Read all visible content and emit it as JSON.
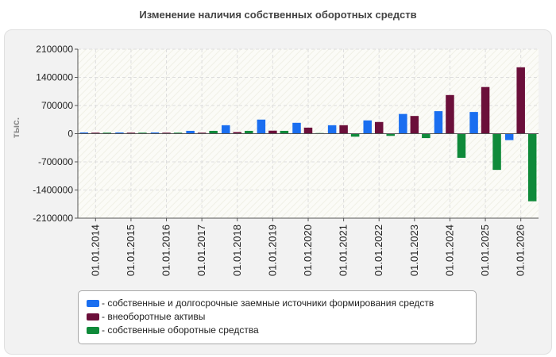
{
  "chart_data": {
    "type": "bar",
    "title": "Изменение наличия собственных оборотных средств",
    "xlabel": "",
    "ylabel": "тыс.",
    "ylim": [
      -2100000,
      2100000
    ],
    "yticks": [
      2100000,
      1400000,
      700000,
      0,
      -700000,
      -1400000,
      -2100000
    ],
    "yticklabels": [
      "2100000",
      "1400000",
      "700000",
      "0",
      "-700000",
      "-1400000",
      "-2100000"
    ],
    "grid": true,
    "legend_position": "bottom",
    "categories": [
      "01.01.2014",
      "01.01.2015",
      "01.01.2016",
      "01.01.2017",
      "01.01.2018",
      "01.01.2019",
      "01.01.2020",
      "01.01.2021",
      "01.01.2022",
      "01.01.2023",
      "01.01.2024",
      "01.01.2025",
      "01.01.2026"
    ],
    "series": [
      {
        "name": "- собственные и долгосрочные заемные источники формирования средств",
        "color": "#1a6ef0",
        "values": [
          30000,
          30000,
          30000,
          70000,
          210000,
          350000,
          270000,
          210000,
          330000,
          490000,
          560000,
          540000,
          -160000
        ]
      },
      {
        "name": "- внеоборотные активы",
        "color": "#6b0f3a",
        "values": [
          25000,
          25000,
          25000,
          25000,
          40000,
          75000,
          150000,
          210000,
          290000,
          440000,
          960000,
          1160000,
          1650000
        ]
      },
      {
        "name": "- собственные оборотные средства",
        "color": "#0f8a3a",
        "values": [
          25000,
          25000,
          25000,
          70000,
          70000,
          70000,
          15000,
          -75000,
          -55000,
          -110000,
          -600000,
          -900000,
          -1680000
        ]
      }
    ]
  }
}
